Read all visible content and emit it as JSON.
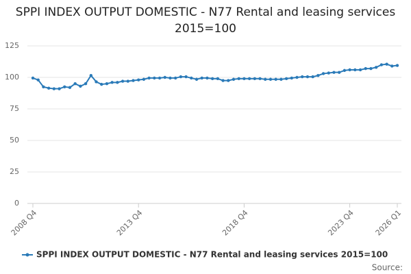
{
  "chart_data": {
    "type": "line",
    "title": "SPPI INDEX OUTPUT DOMESTIC - N77 Rental and leasing services 2015=100",
    "categories": [
      "2008 Q4",
      null,
      null,
      null,
      null,
      null,
      null,
      null,
      null,
      null,
      null,
      null,
      null,
      null,
      null,
      null,
      null,
      null,
      null,
      null,
      "2013 Q4",
      null,
      null,
      null,
      null,
      null,
      null,
      null,
      null,
      null,
      null,
      null,
      null,
      null,
      null,
      null,
      null,
      null,
      null,
      null,
      "2018 Q4",
      null,
      null,
      null,
      null,
      null,
      null,
      null,
      null,
      null,
      null,
      null,
      null,
      null,
      null,
      null,
      null,
      null,
      null,
      null,
      "2023 Q4",
      null,
      null,
      null,
      null,
      null,
      null,
      null,
      null,
      "2026 Q1"
    ],
    "series": [
      {
        "name": "SPPI INDEX OUTPUT DOMESTIC - N77 Rental and leasing services 2015=100",
        "color": "#2a7ab8",
        "values": [
          99.5,
          98,
          92.5,
          91.5,
          91,
          91,
          92.5,
          92,
          95,
          93,
          95,
          101.5,
          96.5,
          94.5,
          95,
          96,
          96,
          97,
          97,
          97.5,
          98,
          98.5,
          99.5,
          99.5,
          99.5,
          100,
          99.5,
          99.5,
          100.5,
          100.5,
          99.5,
          98.5,
          99.5,
          99.5,
          99,
          99,
          97.5,
          97.5,
          98.5,
          99,
          99,
          99,
          99,
          99,
          98.5,
          98.5,
          98.5,
          98.5,
          99,
          99.5,
          100,
          100.5,
          100.5,
          100.5,
          101.5,
          103,
          103.5,
          104,
          104,
          105.5,
          106,
          106,
          106,
          107,
          107,
          108,
          110,
          110.5,
          109,
          109.5
        ]
      }
    ],
    "ylim": [
      0,
      125
    ],
    "yticks": [
      0,
      25,
      50,
      75,
      100,
      125
    ],
    "grid": true,
    "source": "Source:"
  }
}
